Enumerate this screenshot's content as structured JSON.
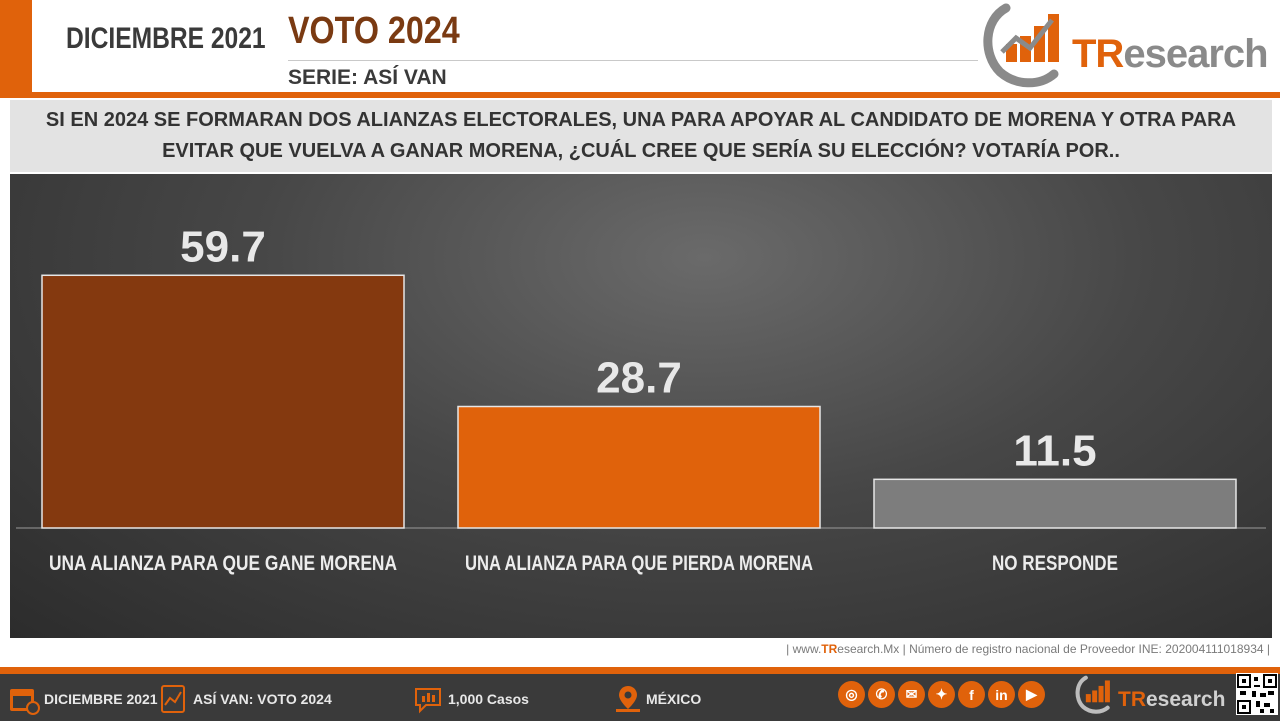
{
  "header": {
    "date": "DICIEMBRE 2021",
    "title": "VOTO 2024",
    "serie": "SERIE: ASÍ VAN",
    "logo_text_a": "TR",
    "logo_text_b": "esearch"
  },
  "question": "SI EN 2024 SE FORMARAN DOS ALIANZAS ELECTORALES, UNA PARA APOYAR AL CANDIDATO DE MORENA Y OTRA PARA EVITAR QUE VUELVA A GANAR MORENA, ¿CUÁL CREE QUE SERÍA SU ELECCIÓN? VOTARÍA POR..",
  "chart_data": {
    "type": "bar",
    "categories": [
      "UNA ALIANZA PARA QUE GANE MORENA",
      "UNA ALIANZA PARA QUE PIERDA MORENA",
      "NO RESPONDE"
    ],
    "values": [
      59.7,
      28.7,
      11.5
    ],
    "value_labels": [
      "59.7",
      "28.7",
      "11.5"
    ],
    "colors": [
      "#84390f",
      "#e0620b",
      "#7d7d7d"
    ],
    "ylim": [
      0,
      60
    ],
    "grid": false,
    "legend": "none"
  },
  "source": {
    "prefix": "| www.",
    "tr": "TR",
    "rest": "esearch.Mx | Número de registro nacional de Proveedor INE: 202004111018934 |"
  },
  "footer": {
    "date": "DICIEMBRE 2021",
    "serie": "ASÍ VAN: VOTO 2024",
    "casos": "1,000 Casos",
    "pais": "MÉXICO",
    "logo_text_a": "TR",
    "logo_text_b": "esearch",
    "icons": [
      "calendar-icon",
      "chart-icon",
      "chat-icon",
      "map-pin-icon",
      "globe-icon",
      "phone-icon",
      "mail-icon",
      "twitter-icon",
      "facebook-icon",
      "linkedin-icon",
      "youtube-icon"
    ]
  },
  "colors": {
    "accent": "#e0620b",
    "brand_dark": "#84390f"
  }
}
